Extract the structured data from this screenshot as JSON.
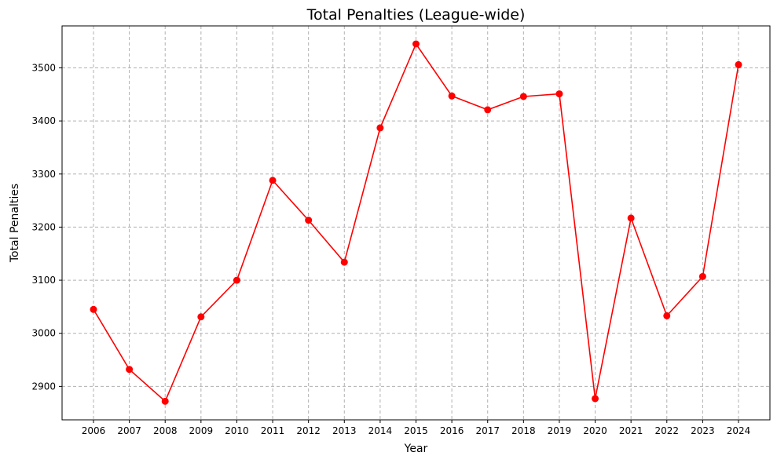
{
  "chart_data": {
    "type": "line",
    "title": "Total Penalties (League-wide)",
    "xlabel": "Year",
    "ylabel": "Total Penalties",
    "x": [
      "2006",
      "2007",
      "2008",
      "2009",
      "2010",
      "2011",
      "2012",
      "2013",
      "2014",
      "2015",
      "2016",
      "2017",
      "2018",
      "2019",
      "2020",
      "2021",
      "2022",
      "2023",
      "2024"
    ],
    "series": [
      {
        "values": [
          3045,
          2932,
          2872,
          3031,
          3100,
          3288,
          3213,
          3134,
          3387,
          3545,
          3447,
          3421,
          3446,
          3451,
          2877,
          3217,
          3033,
          3107,
          3506
        ],
        "color": "#ff0000",
        "marker": "circle"
      }
    ],
    "yticks": [
      2900,
      3000,
      3100,
      3200,
      3300,
      3400,
      3500
    ],
    "ylim": [
      2837,
      3579
    ],
    "grid": true,
    "grid_style": "dashed"
  }
}
